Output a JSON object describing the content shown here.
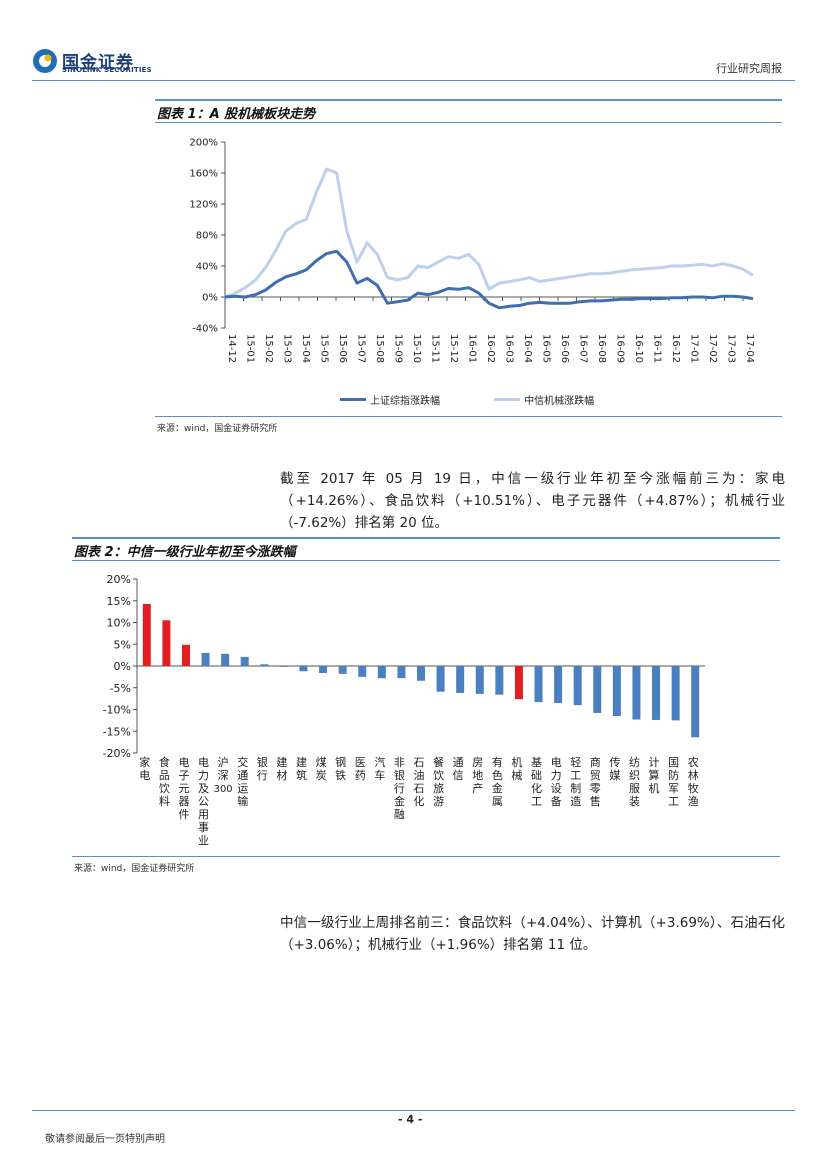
{
  "header": {
    "company_cn": "国金证券",
    "company_en": "SINOLINK SECURITIES",
    "report_type": "行业研究周报"
  },
  "figure1": {
    "title": "图表 1：A 股机械板块走势",
    "source": "来源：wind，国金证券研究所"
  },
  "figure2": {
    "title": "图表 2：中信一级行业年初至今涨跌幅",
    "source": "来源：wind，国金证券研究所"
  },
  "paragraph1": "截至 2017 年 05 月 19 日，中信一级行业年初至今涨幅前三为：家电（+14.26%）、食品饮料（+10.51%）、电子元器件（+4.87%）；机械行业（-7.62%）排名第 20 位。",
  "paragraph2": "中信一级行业上周排名前三：食品饮料（+4.04%）、计算机（+3.69%）、石油石化（+3.06%）；机械行业（+1.96%）排名第 11 位。",
  "footer": {
    "page": "- 4 -",
    "disclaimer": "敬请参阅最后一页特别声明"
  },
  "chart_data": [
    {
      "type": "line",
      "x_ticks": [
        "14-12",
        "15-01",
        "15-02",
        "15-03",
        "15-04",
        "15-05",
        "15-06",
        "15-07",
        "15-08",
        "15-09",
        "15-10",
        "15-11",
        "15-12",
        "16-01",
        "16-02",
        "16-03",
        "16-04",
        "16-05",
        "16-06",
        "16-07",
        "16-08",
        "16-09",
        "16-10",
        "16-11",
        "16-12",
        "17-01",
        "17-02",
        "17-03",
        "17-04"
      ],
      "y_tick_labels": [
        "200%",
        "160%",
        "120%",
        "80%",
        "40%",
        "0%",
        "-40%"
      ],
      "ylim": [
        -40,
        200
      ],
      "grid": false,
      "legend_position": "bottom",
      "series": [
        {
          "name": "上证综指涨跌幅",
          "color": "#3e6db0",
          "values": [
            0,
            1,
            0,
            3,
            9,
            19,
            26,
            30,
            35,
            47,
            56,
            59,
            45,
            18,
            24,
            15,
            -8,
            -6,
            -4,
            5,
            3,
            6,
            11,
            10,
            12,
            5,
            -8,
            -14,
            -12,
            -11,
            -8,
            -7,
            -8,
            -8,
            -8,
            -6,
            -5,
            -5,
            -4,
            -3,
            -3,
            -2,
            -2,
            -2,
            -1,
            -1,
            0,
            0,
            -1,
            1,
            1,
            0,
            -2
          ]
        },
        {
          "name": "中信机械涨跌幅",
          "color": "#bcd0ee",
          "values": [
            0,
            5,
            12,
            22,
            38,
            60,
            85,
            95,
            100,
            135,
            165,
            160,
            85,
            45,
            70,
            55,
            25,
            22,
            25,
            40,
            38,
            45,
            52,
            50,
            55,
            42,
            10,
            18,
            20,
            22,
            25,
            20,
            22,
            24,
            26,
            28,
            30,
            30,
            31,
            33,
            35,
            36,
            37,
            38,
            40,
            40,
            41,
            42,
            40,
            43,
            40,
            36,
            28
          ]
        }
      ]
    },
    {
      "type": "bar",
      "categories": [
        "家电",
        "食品饮料",
        "电子元器件",
        "电力及公用事业",
        "沪深300",
        "交通运输",
        "银行",
        "建材",
        "建筑",
        "煤炭",
        "钢铁",
        "医药",
        "汽车",
        "非银行金融",
        "石油石化",
        "餐饮旅游",
        "通信",
        "房地产",
        "有色金属",
        "机械",
        "基础化工",
        "电力设备",
        "轻工制造",
        "商贸零售",
        "传媒",
        "纺织服装",
        "计算机",
        "国防军工",
        "农林牧渔"
      ],
      "values": [
        14.26,
        10.51,
        4.87,
        3.0,
        2.8,
        2.1,
        0.4,
        -0.2,
        -1.2,
        -1.6,
        -1.8,
        -2.5,
        -2.8,
        -2.8,
        -3.4,
        -5.9,
        -6.2,
        -6.4,
        -6.6,
        -7.62,
        -8.3,
        -8.5,
        -9.0,
        -10.8,
        -11.5,
        -12.3,
        -12.4,
        -12.5,
        -16.4
      ],
      "highlight": [
        "家电",
        "食品饮料",
        "电子元器件",
        "机械"
      ],
      "bar_color": "#4a7fc1",
      "highlight_color": "#e02020",
      "y_tick_labels": [
        "20%",
        "15%",
        "10%",
        "5%",
        "0%",
        "-5%",
        "-10%",
        "-15%",
        "-20%"
      ],
      "ylim": [
        -20,
        20
      ],
      "grid": false
    }
  ]
}
